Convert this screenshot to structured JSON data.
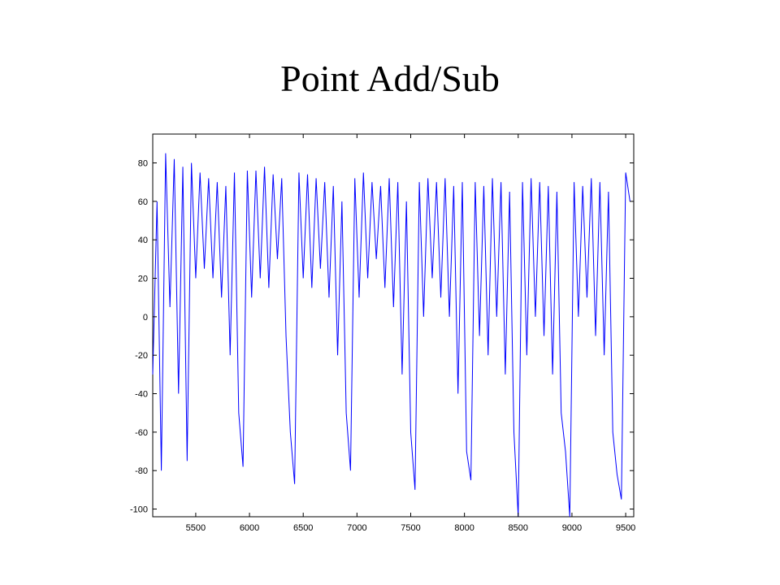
{
  "chart_data": {
    "type": "line",
    "title": "Point Add/Sub",
    "x": [
      5100,
      5140,
      5180,
      5220,
      5260,
      5300,
      5340,
      5380,
      5420,
      5460,
      5500,
      5540,
      5580,
      5620,
      5660,
      5700,
      5740,
      5780,
      5820,
      5860,
      5900,
      5940,
      5980,
      6020,
      6060,
      6100,
      6140,
      6180,
      6220,
      6260,
      6300,
      6340,
      6380,
      6420,
      6460,
      6500,
      6540,
      6580,
      6620,
      6660,
      6700,
      6740,
      6780,
      6820,
      6860,
      6900,
      6940,
      6980,
      7020,
      7060,
      7100,
      7140,
      7180,
      7220,
      7260,
      7300,
      7340,
      7380,
      7420,
      7460,
      7500,
      7540,
      7580,
      7620,
      7660,
      7700,
      7740,
      7780,
      7820,
      7860,
      7900,
      7940,
      7980,
      8020,
      8060,
      8100,
      8140,
      8180,
      8220,
      8260,
      8300,
      8340,
      8380,
      8420,
      8460,
      8500,
      8540,
      8580,
      8620,
      8660,
      8700,
      8740,
      8780,
      8820,
      8860,
      8900,
      8940,
      8980,
      9020,
      9060,
      9100,
      9140,
      9180,
      9220,
      9260,
      9300,
      9340,
      9380,
      9420,
      9460,
      9500,
      9540
    ],
    "series": [
      {
        "color": "#0000ff",
        "values": [
          -30,
          60,
          -80,
          85,
          5,
          82,
          -40,
          78,
          -75,
          80,
          20,
          75,
          25,
          72,
          20,
          70,
          10,
          68,
          -20,
          75,
          -50,
          -78,
          76,
          10,
          76,
          20,
          78,
          15,
          74,
          30,
          72,
          -10,
          -60,
          -87,
          75,
          20,
          74,
          15,
          72,
          25,
          70,
          10,
          68,
          -20,
          60,
          -50,
          -80,
          72,
          10,
          75,
          20,
          70,
          30,
          68,
          15,
          72,
          5,
          70,
          -30,
          60,
          -60,
          -90,
          70,
          0,
          72,
          20,
          70,
          10,
          72,
          0,
          68,
          -40,
          70,
          -70,
          -85,
          70,
          -10,
          68,
          -20,
          72,
          0,
          70,
          -30,
          65,
          -60,
          -104,
          70,
          -20,
          72,
          0,
          70,
          -10,
          68,
          -30,
          65,
          -50,
          -70,
          -104,
          70,
          0,
          68,
          10,
          72,
          -10,
          70,
          -20,
          65,
          -60,
          -82,
          -95,
          75,
          60
        ]
      }
    ],
    "xlim": [
      5100,
      9575
    ],
    "ylim": [
      -104,
      95
    ],
    "xticks": [
      5500,
      6000,
      6500,
      7000,
      7500,
      8000,
      8500,
      9000,
      9500
    ],
    "yticks": [
      -100,
      -80,
      -60,
      -40,
      -20,
      0,
      20,
      40,
      60,
      80
    ]
  }
}
